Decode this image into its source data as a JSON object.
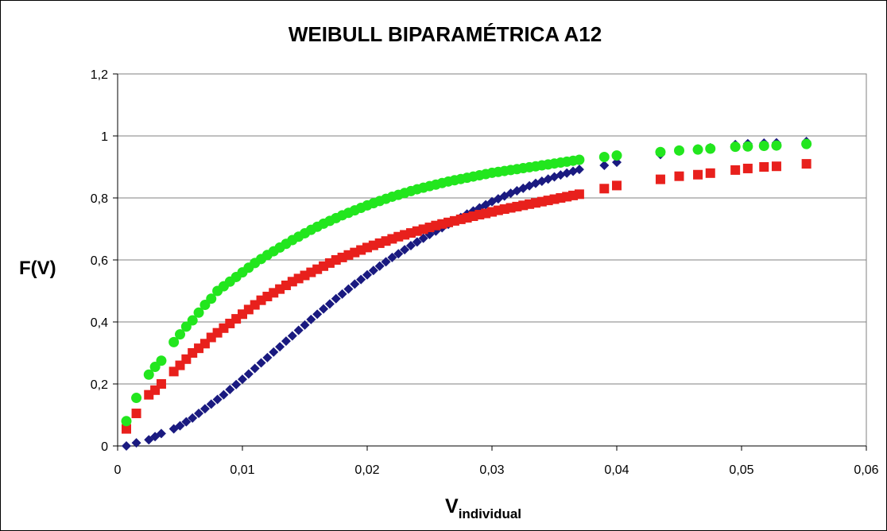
{
  "chart_data": {
    "type": "scatter",
    "title": "WEIBULL BIPARAMÉTRICA A12",
    "ylabel": "F(V)",
    "xlabel_main": "V",
    "xlabel_sub": "individual",
    "xlim": [
      0,
      0.06
    ],
    "ylim": [
      0,
      1.2
    ],
    "x_ticks": [
      "0",
      "0,01",
      "0,02",
      "0,03",
      "0,04",
      "0,05",
      "0,06"
    ],
    "y_ticks": [
      "0",
      "0,2",
      "0,4",
      "0,6",
      "0,8",
      "1",
      "1,2"
    ],
    "grid": "horizontal",
    "legend": "none",
    "series": [
      {
        "marker": "diamond",
        "color": "#1a1a80",
        "x": [
          0.0007,
          0.0015,
          0.0025,
          0.003,
          0.0035,
          0.0045,
          0.005,
          0.0055,
          0.006,
          0.0065,
          0.007,
          0.0075,
          0.008,
          0.0085,
          0.009,
          0.0095,
          0.01,
          0.0105,
          0.011,
          0.0115,
          0.012,
          0.0125,
          0.013,
          0.0135,
          0.014,
          0.0145,
          0.015,
          0.0155,
          0.016,
          0.0165,
          0.017,
          0.0175,
          0.018,
          0.0185,
          0.019,
          0.0195,
          0.02,
          0.0205,
          0.021,
          0.0215,
          0.022,
          0.0225,
          0.023,
          0.0235,
          0.024,
          0.0245,
          0.025,
          0.0255,
          0.026,
          0.0265,
          0.027,
          0.0275,
          0.028,
          0.0285,
          0.029,
          0.0295,
          0.03,
          0.0305,
          0.031,
          0.0315,
          0.032,
          0.0325,
          0.033,
          0.0335,
          0.034,
          0.0345,
          0.035,
          0.0355,
          0.036,
          0.0365,
          0.037,
          0.039,
          0.04,
          0.0435,
          0.045,
          0.0465,
          0.0475,
          0.0495,
          0.0505,
          0.0518,
          0.0528,
          0.0552
        ],
        "y": [
          0.0,
          0.01,
          0.02,
          0.03,
          0.04,
          0.055,
          0.065,
          0.078,
          0.09,
          0.105,
          0.12,
          0.135,
          0.15,
          0.165,
          0.182,
          0.198,
          0.215,
          0.232,
          0.25,
          0.268,
          0.285,
          0.303,
          0.32,
          0.338,
          0.355,
          0.373,
          0.39,
          0.408,
          0.425,
          0.442,
          0.458,
          0.475,
          0.49,
          0.506,
          0.522,
          0.537,
          0.552,
          0.566,
          0.58,
          0.594,
          0.608,
          0.62,
          0.633,
          0.646,
          0.658,
          0.67,
          0.682,
          0.693,
          0.704,
          0.715,
          0.726,
          0.737,
          0.748,
          0.758,
          0.768,
          0.778,
          0.788,
          0.797,
          0.806,
          0.815,
          0.823,
          0.831,
          0.839,
          0.847,
          0.854,
          0.861,
          0.868,
          0.874,
          0.88,
          0.886,
          0.892,
          0.905,
          0.915,
          0.94,
          0.952,
          0.958,
          0.962,
          0.972,
          0.975,
          0.977,
          0.978,
          0.982
        ]
      },
      {
        "marker": "square",
        "color": "#e8201c",
        "x": [
          0.0007,
          0.0015,
          0.0025,
          0.003,
          0.0035,
          0.0045,
          0.005,
          0.0055,
          0.006,
          0.0065,
          0.007,
          0.0075,
          0.008,
          0.0085,
          0.009,
          0.0095,
          0.01,
          0.0105,
          0.011,
          0.0115,
          0.012,
          0.0125,
          0.013,
          0.0135,
          0.014,
          0.0145,
          0.015,
          0.0155,
          0.016,
          0.0165,
          0.017,
          0.0175,
          0.018,
          0.0185,
          0.019,
          0.0195,
          0.02,
          0.0205,
          0.021,
          0.0215,
          0.022,
          0.0225,
          0.023,
          0.0235,
          0.024,
          0.0245,
          0.025,
          0.0255,
          0.026,
          0.0265,
          0.027,
          0.0275,
          0.028,
          0.0285,
          0.029,
          0.0295,
          0.03,
          0.0305,
          0.031,
          0.0315,
          0.032,
          0.0325,
          0.033,
          0.0335,
          0.034,
          0.0345,
          0.035,
          0.0355,
          0.036,
          0.0365,
          0.037,
          0.039,
          0.04,
          0.0435,
          0.045,
          0.0465,
          0.0475,
          0.0495,
          0.0505,
          0.0518,
          0.0528,
          0.0552
        ],
        "y": [
          0.055,
          0.105,
          0.165,
          0.18,
          0.2,
          0.24,
          0.26,
          0.28,
          0.3,
          0.315,
          0.33,
          0.35,
          0.365,
          0.38,
          0.395,
          0.41,
          0.425,
          0.44,
          0.455,
          0.47,
          0.482,
          0.494,
          0.506,
          0.518,
          0.53,
          0.54,
          0.55,
          0.56,
          0.57,
          0.58,
          0.59,
          0.6,
          0.608,
          0.616,
          0.624,
          0.632,
          0.64,
          0.647,
          0.654,
          0.661,
          0.668,
          0.675,
          0.681,
          0.687,
          0.693,
          0.699,
          0.705,
          0.711,
          0.716,
          0.721,
          0.726,
          0.731,
          0.736,
          0.741,
          0.746,
          0.75,
          0.755,
          0.76,
          0.764,
          0.768,
          0.772,
          0.776,
          0.78,
          0.784,
          0.788,
          0.792,
          0.796,
          0.8,
          0.804,
          0.808,
          0.812,
          0.83,
          0.84,
          0.86,
          0.87,
          0.875,
          0.88,
          0.89,
          0.895,
          0.9,
          0.902,
          0.91
        ]
      },
      {
        "marker": "circle",
        "color": "#22e61e",
        "x": [
          0.0007,
          0.0015,
          0.0025,
          0.003,
          0.0035,
          0.0045,
          0.005,
          0.0055,
          0.006,
          0.0065,
          0.007,
          0.0075,
          0.008,
          0.0085,
          0.009,
          0.0095,
          0.01,
          0.0105,
          0.011,
          0.0115,
          0.012,
          0.0125,
          0.013,
          0.0135,
          0.014,
          0.0145,
          0.015,
          0.0155,
          0.016,
          0.0165,
          0.017,
          0.0175,
          0.018,
          0.0185,
          0.019,
          0.0195,
          0.02,
          0.0205,
          0.021,
          0.0215,
          0.022,
          0.0225,
          0.023,
          0.0235,
          0.024,
          0.0245,
          0.025,
          0.0255,
          0.026,
          0.0265,
          0.027,
          0.0275,
          0.028,
          0.0285,
          0.029,
          0.0295,
          0.03,
          0.0305,
          0.031,
          0.0315,
          0.032,
          0.0325,
          0.033,
          0.0335,
          0.034,
          0.0345,
          0.035,
          0.0355,
          0.036,
          0.0365,
          0.037,
          0.039,
          0.04,
          0.0435,
          0.045,
          0.0465,
          0.0475,
          0.0495,
          0.0505,
          0.0518,
          0.0528,
          0.0552
        ],
        "y": [
          0.08,
          0.155,
          0.23,
          0.255,
          0.275,
          0.335,
          0.36,
          0.385,
          0.405,
          0.43,
          0.455,
          0.475,
          0.5,
          0.515,
          0.53,
          0.545,
          0.56,
          0.575,
          0.59,
          0.603,
          0.616,
          0.628,
          0.64,
          0.652,
          0.664,
          0.675,
          0.686,
          0.697,
          0.707,
          0.717,
          0.726,
          0.735,
          0.744,
          0.752,
          0.76,
          0.768,
          0.776,
          0.783,
          0.79,
          0.797,
          0.804,
          0.81,
          0.816,
          0.822,
          0.828,
          0.833,
          0.838,
          0.843,
          0.848,
          0.853,
          0.857,
          0.861,
          0.865,
          0.869,
          0.873,
          0.877,
          0.881,
          0.884,
          0.887,
          0.89,
          0.893,
          0.896,
          0.899,
          0.902,
          0.905,
          0.908,
          0.911,
          0.914,
          0.917,
          0.92,
          0.923,
          0.932,
          0.937,
          0.948,
          0.953,
          0.956,
          0.959,
          0.965,
          0.966,
          0.968,
          0.969,
          0.974
        ]
      }
    ]
  }
}
